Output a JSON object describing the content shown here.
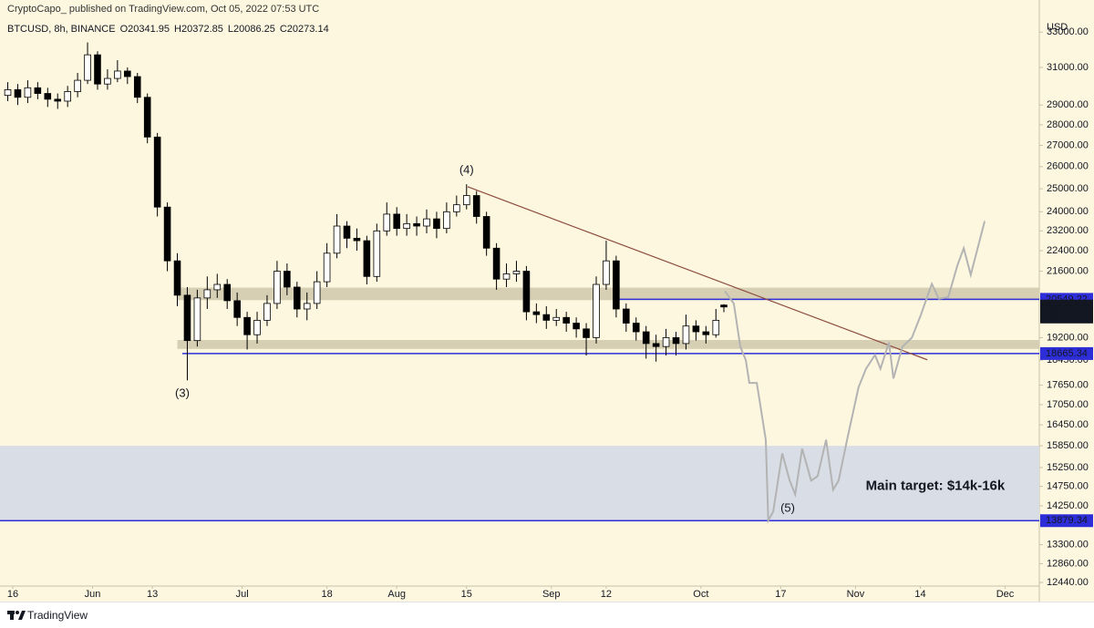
{
  "publisher": "CryptoCapo_ published on TradingView.com, Oct 05, 2022 07:53 UTC",
  "footer": "TradingView",
  "chart_data": {
    "type": "candlestick",
    "symbol": "BTCUSD, 8h, BINANCE",
    "ohlc_labels": [
      "O20341.95",
      "H20372.85",
      "L20086.25",
      "C20273.14"
    ],
    "currency": "USD",
    "log_scale": true,
    "up_color": "#ffffff",
    "down_color": "#000000",
    "x": [
      -1,
      1,
      3,
      5,
      7,
      9,
      11,
      13,
      15,
      17,
      19,
      21,
      23,
      25,
      27,
      29,
      31,
      33,
      35,
      37,
      39,
      41,
      43,
      45,
      47,
      49,
      51,
      53,
      55,
      57,
      59,
      61,
      63,
      65,
      67,
      69,
      71,
      73,
      75,
      77,
      79,
      81,
      83,
      85,
      87,
      89,
      91,
      93,
      95,
      97,
      99,
      101,
      103,
      105,
      107,
      109,
      111,
      113,
      115,
      117,
      119,
      121,
      123,
      125,
      127,
      129,
      131,
      133,
      135,
      137,
      139,
      141,
      142.6
    ],
    "open": [
      29500,
      29800,
      29400,
      29900,
      29600,
      29300,
      29200,
      29700,
      30300,
      31700,
      30100,
      30400,
      30800,
      30500,
      29400,
      27400,
      24200,
      22000,
      20700,
      19100,
      20600,
      20900,
      21100,
      20500,
      19900,
      19300,
      19800,
      20400,
      21600,
      21000,
      20200,
      20400,
      21200,
      22300,
      23400,
      22900,
      22800,
      21400,
      23200,
      23900,
      23300,
      23500,
      23400,
      23700,
      23300,
      24000,
      24300,
      24700,
      23800,
      22500,
      21300,
      21500,
      21600,
      20100,
      20000,
      19800,
      19900,
      19700,
      19500,
      19200,
      21100,
      22000,
      20200,
      19700,
      19400,
      19000,
      18900,
      19200,
      19000,
      19600,
      19400,
      19300,
      20341.95
    ],
    "high": [
      30200,
      30100,
      30300,
      30200,
      29900,
      29600,
      30000,
      30700,
      32400,
      31900,
      30900,
      31400,
      31000,
      30700,
      29600,
      27600,
      24400,
      22300,
      21000,
      20900,
      21400,
      21500,
      21300,
      20800,
      20100,
      20100,
      20700,
      22000,
      21900,
      21200,
      20800,
      21600,
      22700,
      23900,
      23600,
      23300,
      23000,
      23500,
      24400,
      24200,
      23900,
      23800,
      24100,
      24000,
      24400,
      24700,
      25200,
      24900,
      24000,
      22700,
      21900,
      22000,
      21800,
      20400,
      20300,
      20200,
      20100,
      19900,
      19700,
      21400,
      22800,
      22200,
      20400,
      19900,
      19600,
      19300,
      19500,
      19400,
      20000,
      19800,
      19600,
      20200,
      20372.85
    ],
    "low": [
      29200,
      29000,
      29100,
      29300,
      28900,
      28800,
      28900,
      29400,
      30100,
      29800,
      29800,
      30200,
      30100,
      29100,
      27100,
      23800,
      21600,
      20300,
      17800,
      18900,
      20200,
      20600,
      20200,
      19600,
      18800,
      19000,
      19600,
      20200,
      20700,
      19900,
      19800,
      20200,
      21000,
      22100,
      22500,
      22400,
      21100,
      21200,
      23000,
      23000,
      23000,
      23000,
      23100,
      22900,
      23100,
      23800,
      24100,
      23500,
      22200,
      20900,
      21000,
      21200,
      19800,
      19700,
      19500,
      19600,
      19400,
      19200,
      18600,
      19000,
      20900,
      19900,
      19400,
      19100,
      18500,
      18400,
      18600,
      18600,
      18800,
      19100,
      19000,
      19200,
      20086.25
    ],
    "close": [
      29800,
      29400,
      29900,
      29600,
      29300,
      29200,
      29700,
      30300,
      31700,
      30100,
      30400,
      30800,
      30500,
      29400,
      27400,
      24200,
      22000,
      20700,
      19100,
      20600,
      20900,
      21100,
      20500,
      19900,
      19300,
      19800,
      20400,
      21600,
      21000,
      20200,
      20400,
      21200,
      22300,
      23400,
      22900,
      22800,
      21400,
      23200,
      23900,
      23300,
      23500,
      23400,
      23700,
      23300,
      24000,
      24300,
      24700,
      23800,
      22500,
      21300,
      21500,
      21600,
      20100,
      20000,
      19800,
      19900,
      19700,
      19500,
      19200,
      21100,
      22000,
      20200,
      19700,
      19400,
      19000,
      18900,
      19200,
      19000,
      19600,
      19400,
      19300,
      19800,
      20273.14
    ],
    "countdown": "06:29",
    "xlim": [
      -2.56,
      205.85
    ],
    "xticks": [
      {
        "value": 0,
        "label": "16"
      },
      {
        "value": 16,
        "label": "Jun"
      },
      {
        "value": 28,
        "label": "13"
      },
      {
        "value": 46,
        "label": "Jul"
      },
      {
        "value": 63,
        "label": "18"
      },
      {
        "value": 77,
        "label": "Aug"
      },
      {
        "value": 91,
        "label": "15"
      },
      {
        "value": 108,
        "label": "Sep"
      },
      {
        "value": 119,
        "label": "12"
      },
      {
        "value": 138,
        "label": "Oct"
      },
      {
        "value": 154,
        "label": "17"
      },
      {
        "value": 169,
        "label": "Nov"
      },
      {
        "value": 182,
        "label": "14"
      },
      {
        "value": 199,
        "label": "Dec"
      }
    ],
    "ylim": [
      12360,
      34935
    ],
    "yticks": [
      {
        "value": 33000,
        "label": "33000.00"
      },
      {
        "value": 31000,
        "label": "31000.00"
      },
      {
        "value": 29000,
        "label": "29000.00"
      },
      {
        "value": 28000,
        "label": "28000.00"
      },
      {
        "value": 27000,
        "label": "27000.00"
      },
      {
        "value": 26000,
        "label": "26000.00"
      },
      {
        "value": 25000,
        "label": "25000.00"
      },
      {
        "value": 24000,
        "label": "24000.00"
      },
      {
        "value": 23200,
        "label": "23200.00"
      },
      {
        "value": 22400,
        "label": "22400.00"
      },
      {
        "value": 21600,
        "label": "21600.00"
      },
      {
        "value": 19200,
        "label": "19200.00"
      },
      {
        "value": 18450,
        "label": "18450.00"
      },
      {
        "value": 17650,
        "label": "17650.00"
      },
      {
        "value": 17050,
        "label": "17050.00"
      },
      {
        "value": 16450,
        "label": "16450.00"
      },
      {
        "value": 15850,
        "label": "15850.00"
      },
      {
        "value": 15250,
        "label": "15250.00"
      },
      {
        "value": 14750,
        "label": "14750.00"
      },
      {
        "value": 14250,
        "label": "14250.00"
      },
      {
        "value": 13300,
        "label": "13300.00"
      },
      {
        "value": 12860,
        "label": "12860.00"
      },
      {
        "value": 12440,
        "label": "12440.00"
      }
    ],
    "zones": [
      {
        "y": [
          15850,
          13879.34
        ],
        "color": "#d9dde6"
      },
      {
        "y": [
          20980,
          20520
        ],
        "x_start": 33,
        "color": "#d6cfb4"
      },
      {
        "y": [
          19120,
          18820
        ],
        "x_start": 33,
        "color": "#d6cfb4"
      }
    ],
    "levels": [
      {
        "value": 20549.22,
        "x_start": 121.4,
        "color": "#2e2ed8"
      },
      {
        "value": 18665.34,
        "x_start": 34,
        "color": "#2e2ed8"
      },
      {
        "value": 13879.34,
        "color": "#2e2ed8"
      }
    ],
    "trendline": {
      "x": [
        91.2,
        183.4
      ],
      "y": [
        25090,
        18460
      ],
      "color": "#8d4b3e"
    },
    "projection": {
      "color": "#b3b3b3",
      "x": [
        142.8,
        144.6,
        145.9,
        147,
        147.7,
        149.2,
        151,
        151.5,
        152.5,
        154.3,
        155.8,
        156.9,
        158.3,
        160.1,
        161.4,
        163.1,
        164.5,
        165.6,
        167.5,
        169.6,
        171.1,
        172.9,
        174,
        175.7,
        176.6,
        178.4,
        180.3,
        182.1,
        184.3,
        185.7,
        187.6,
        189.4,
        190.7,
        192.1,
        194.9
      ],
      "y": [
        20850,
        20390,
        18890,
        18450,
        17720,
        17720,
        16020,
        13880,
        14110,
        15640,
        14900,
        14540,
        15770,
        14900,
        15020,
        16020,
        14660,
        14900,
        16150,
        17580,
        18170,
        18620,
        18170,
        19040,
        17860,
        18890,
        19200,
        19990,
        21120,
        20570,
        20630,
        21810,
        22500,
        21460,
        23610
      ]
    },
    "annotations": [
      {
        "text": "(4)",
        "x": 91,
        "y": 25830
      },
      {
        "text": "(3)",
        "x": 34,
        "y": 17380
      },
      {
        "text": "(5)",
        "x": 155.4,
        "y": 14180
      },
      {
        "text": "Main target: $14k-16k",
        "x": 185,
        "y": 14750,
        "bold": true
      }
    ]
  }
}
